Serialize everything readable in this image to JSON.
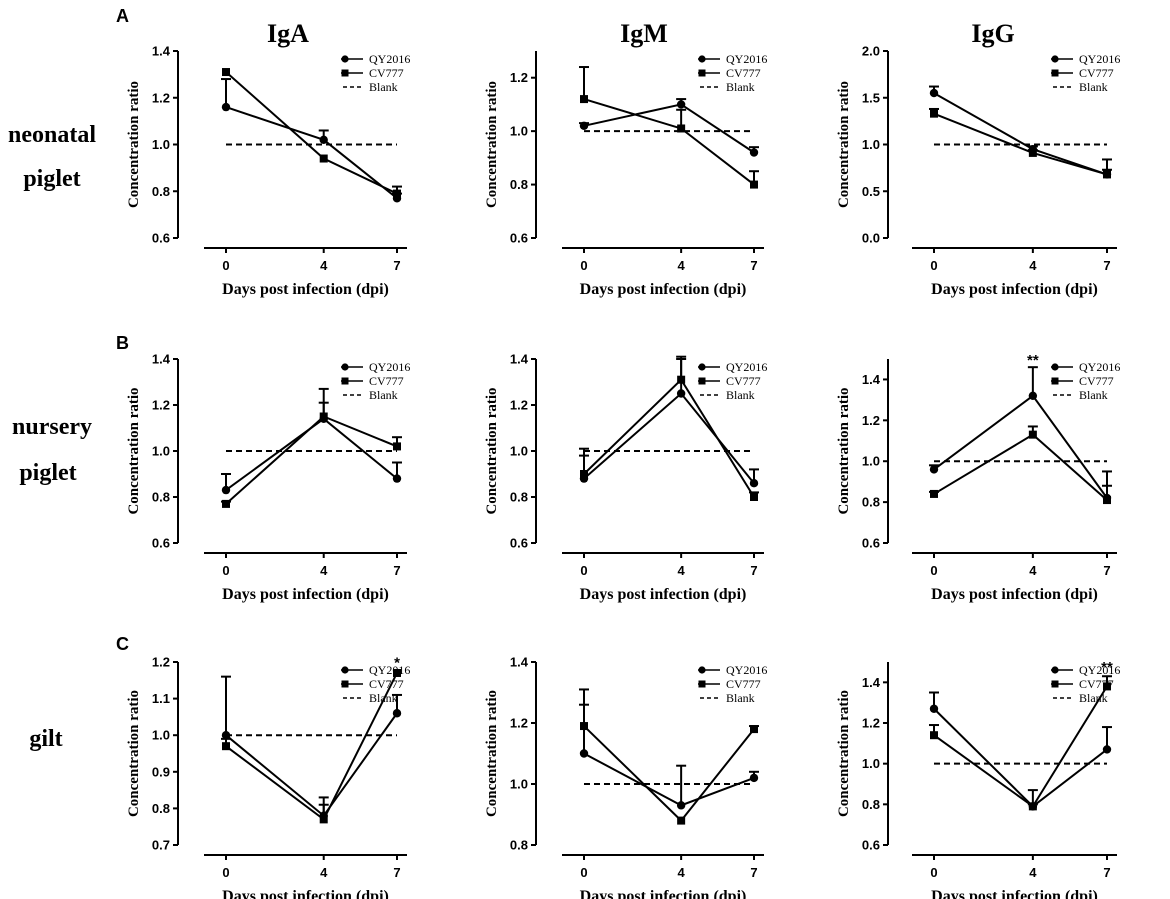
{
  "figure": {
    "panel_letters": [
      "A",
      "B",
      "C"
    ],
    "row_labels": [
      {
        "lines": [
          "neonatal",
          "piglet"
        ]
      },
      {
        "lines": [
          "nursery",
          "piglet"
        ]
      },
      {
        "lines": [
          "gilt"
        ]
      }
    ],
    "column_titles": [
      "IgA",
      "IgM",
      "IgG"
    ],
    "colors": {
      "ink": "#000000",
      "background": "#ffffff"
    }
  },
  "chart_data": [
    {
      "type": "line",
      "row": 0,
      "col": 0,
      "xlabel": "Days post infection (dpi)",
      "ylabel": "Concentration ratio",
      "x": [
        0,
        4,
        7
      ],
      "ylim": [
        0.6,
        1.4
      ],
      "yticks": [
        0.6,
        0.8,
        1.0,
        1.2,
        1.4
      ],
      "ytick_labels": [
        "0.6",
        "0.8",
        "1.0",
        "1.2",
        "1.4"
      ],
      "series": [
        {
          "name": "QY2016",
          "marker": "circle",
          "values": [
            1.16,
            1.02,
            0.77
          ],
          "error": [
            0.12,
            0.04,
            0.02
          ]
        },
        {
          "name": "CV777",
          "marker": "square",
          "values": [
            1.31,
            0.94,
            0.79
          ],
          "error": [
            0,
            0,
            0.03
          ]
        },
        {
          "name": "Blank",
          "marker": "dashed",
          "values": [
            1.0,
            1.0,
            1.0
          ]
        }
      ],
      "legend": "top-right",
      "annotations": []
    },
    {
      "type": "line",
      "row": 0,
      "col": 1,
      "xlabel": "Days post infection (dpi)",
      "ylabel": "Concentration ratio",
      "x": [
        0,
        4,
        7
      ],
      "ylim": [
        0.6,
        1.3
      ],
      "yticks": [
        0.6,
        0.8,
        1.0,
        1.2
      ],
      "ytick_labels": [
        "0.6",
        "0.8",
        "1.0",
        "1.2"
      ],
      "series": [
        {
          "name": "QY2016",
          "marker": "circle",
          "values": [
            1.02,
            1.1,
            0.92
          ],
          "error": [
            0.01,
            0.02,
            0.02
          ]
        },
        {
          "name": "CV777",
          "marker": "square",
          "values": [
            1.12,
            1.01,
            0.8
          ],
          "error": [
            0.12,
            0.07,
            0.05
          ]
        },
        {
          "name": "Blank",
          "marker": "dashed",
          "values": [
            1.0,
            1.0,
            1.0
          ]
        }
      ],
      "legend": "top-right",
      "annotations": []
    },
    {
      "type": "line",
      "row": 0,
      "col": 2,
      "xlabel": "Days post infection (dpi)",
      "ylabel": "Concentration ratio",
      "x": [
        0,
        4,
        7
      ],
      "ylim": [
        0.0,
        2.0
      ],
      "yticks": [
        0.0,
        0.5,
        1.0,
        1.5,
        2.0
      ],
      "ytick_labels": [
        "0.0",
        "0.5",
        "1.0",
        "1.5",
        "2.0"
      ],
      "series": [
        {
          "name": "QY2016",
          "marker": "circle",
          "values": [
            1.55,
            0.95,
            0.68
          ],
          "error": [
            0.07,
            0.03,
            0.16
          ]
        },
        {
          "name": "CV777",
          "marker": "square",
          "values": [
            1.33,
            0.91,
            0.68
          ],
          "error": [
            0.05,
            0.03,
            0.05
          ]
        },
        {
          "name": "Blank",
          "marker": "dashed",
          "values": [
            1.0,
            1.0,
            1.0
          ]
        }
      ],
      "legend": "top-right",
      "annotations": []
    },
    {
      "type": "line",
      "row": 1,
      "col": 0,
      "xlabel": "Days post infection (dpi)",
      "ylabel": "Concentration ratio",
      "x": [
        0,
        4,
        7
      ],
      "ylim": [
        0.6,
        1.4
      ],
      "yticks": [
        0.6,
        0.8,
        1.0,
        1.2,
        1.4
      ],
      "ytick_labels": [
        "0.6",
        "0.8",
        "1.0",
        "1.2",
        "1.4"
      ],
      "series": [
        {
          "name": "QY2016",
          "marker": "circle",
          "values": [
            0.83,
            1.14,
            0.88
          ],
          "error": [
            0.07,
            0.13,
            0.07
          ]
        },
        {
          "name": "CV777",
          "marker": "square",
          "values": [
            0.77,
            1.15,
            1.02
          ],
          "error": [
            0.01,
            0.06,
            0.04
          ]
        },
        {
          "name": "Blank",
          "marker": "dashed",
          "values": [
            1.0,
            1.0,
            1.0
          ]
        }
      ],
      "legend": "top-right",
      "annotations": []
    },
    {
      "type": "line",
      "row": 1,
      "col": 1,
      "xlabel": "Days post infection (dpi)",
      "ylabel": "Concentration ratio",
      "x": [
        0,
        4,
        7
      ],
      "ylim": [
        0.6,
        1.4
      ],
      "yticks": [
        0.6,
        0.8,
        1.0,
        1.2,
        1.4
      ],
      "ytick_labels": [
        "0.6",
        "0.8",
        "1.0",
        "1.2",
        "1.4"
      ],
      "series": [
        {
          "name": "QY2016",
          "marker": "circle",
          "values": [
            0.88,
            1.25,
            0.86
          ],
          "error": [
            0.1,
            0.15,
            0.06
          ]
        },
        {
          "name": "CV777",
          "marker": "square",
          "values": [
            0.9,
            1.31,
            0.8
          ],
          "error": [
            0.11,
            0.1,
            0.02
          ]
        },
        {
          "name": "Blank",
          "marker": "dashed",
          "values": [
            1.0,
            1.0,
            1.0
          ]
        }
      ],
      "legend": "top-right",
      "annotations": []
    },
    {
      "type": "line",
      "row": 1,
      "col": 2,
      "xlabel": "Days post infection (dpi)",
      "ylabel": "Concentration ratio",
      "x": [
        0,
        4,
        7
      ],
      "ylim": [
        0.6,
        1.5
      ],
      "yticks": [
        0.6,
        0.8,
        1.0,
        1.2,
        1.4
      ],
      "ytick_labels": [
        "0.6",
        "0.8",
        "1.0",
        "1.2",
        "1.4"
      ],
      "series": [
        {
          "name": "QY2016",
          "marker": "circle",
          "values": [
            0.96,
            1.32,
            0.82
          ],
          "error": [
            0.02,
            0.14,
            0.13
          ]
        },
        {
          "name": "CV777",
          "marker": "square",
          "values": [
            0.84,
            1.13,
            0.81
          ],
          "error": [
            0.01,
            0.04,
            0.07
          ]
        },
        {
          "name": "Blank",
          "marker": "dashed",
          "values": [
            1.0,
            1.0,
            1.0
          ]
        }
      ],
      "legend": "top-right",
      "annotations": [
        {
          "x": 4,
          "y": 1.46,
          "text": "**"
        }
      ]
    },
    {
      "type": "line",
      "row": 2,
      "col": 0,
      "xlabel": "Days post infection (dpi)",
      "ylabel": "Concentration ratio",
      "x": [
        0,
        4,
        7
      ],
      "ylim": [
        0.7,
        1.2
      ],
      "yticks": [
        0.7,
        0.8,
        0.9,
        1.0,
        1.1,
        1.2
      ],
      "ytick_labels": [
        "0.7",
        "0.8",
        "0.9",
        "1.0",
        "1.1",
        "1.2"
      ],
      "series": [
        {
          "name": "QY2016",
          "marker": "circle",
          "values": [
            1.0,
            0.78,
            1.06
          ],
          "error": [
            0.16,
            0.05,
            0.05
          ]
        },
        {
          "name": "CV777",
          "marker": "square",
          "values": [
            0.97,
            0.77,
            1.17
          ],
          "error": [
            0.02,
            0.04,
            0
          ]
        },
        {
          "name": "Blank",
          "marker": "dashed",
          "values": [
            1.0,
            1.0,
            1.0
          ]
        }
      ],
      "legend": "top-right",
      "annotations": [
        {
          "x": 7,
          "y": 1.18,
          "text": "*"
        }
      ]
    },
    {
      "type": "line",
      "row": 2,
      "col": 1,
      "xlabel": "Days post infection (dpi)",
      "ylabel": "Concentration ratio",
      "x": [
        0,
        4,
        7
      ],
      "ylim": [
        0.8,
        1.4
      ],
      "yticks": [
        0.8,
        1.0,
        1.2,
        1.4
      ],
      "ytick_labels": [
        "0.8",
        "1.0",
        "1.2",
        "1.4"
      ],
      "series": [
        {
          "name": "QY2016",
          "marker": "circle",
          "values": [
            1.1,
            0.93,
            1.02
          ],
          "error": [
            0.16,
            0.13,
            0.02
          ]
        },
        {
          "name": "CV777",
          "marker": "square",
          "values": [
            1.19,
            0.88,
            1.18
          ],
          "error": [
            0.12,
            0,
            0.01
          ]
        },
        {
          "name": "Blank",
          "marker": "dashed",
          "values": [
            1.0,
            1.0,
            1.0
          ]
        }
      ],
      "legend": "top-right",
      "annotations": []
    },
    {
      "type": "line",
      "row": 2,
      "col": 2,
      "xlabel": "Days post infection (dpi)",
      "ylabel": "Concentration ratio",
      "x": [
        0,
        4,
        7
      ],
      "ylim": [
        0.6,
        1.5
      ],
      "yticks": [
        0.6,
        0.8,
        1.0,
        1.2,
        1.4
      ],
      "ytick_labels": [
        "0.6",
        "0.8",
        "1.0",
        "1.2",
        "1.4"
      ],
      "series": [
        {
          "name": "QY2016",
          "marker": "circle",
          "values": [
            1.27,
            0.79,
            1.07
          ],
          "error": [
            0.08,
            0.08,
            0.11
          ]
        },
        {
          "name": "CV777",
          "marker": "square",
          "values": [
            1.14,
            0.79,
            1.38
          ],
          "error": [
            0.05,
            0.01,
            0.05
          ]
        },
        {
          "name": "Blank",
          "marker": "dashed",
          "values": [
            1.0,
            1.0,
            1.0
          ]
        }
      ],
      "legend": "top-right",
      "annotations": [
        {
          "x": 7,
          "y": 1.44,
          "text": "**"
        }
      ]
    }
  ]
}
